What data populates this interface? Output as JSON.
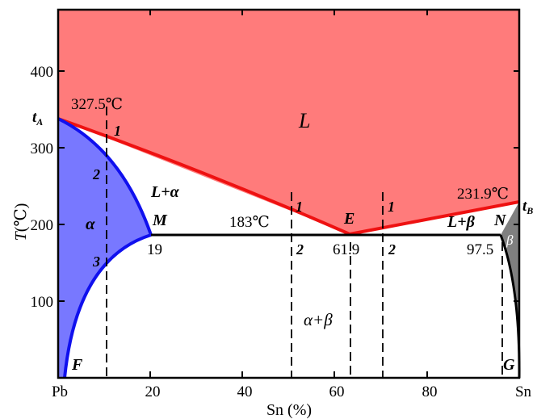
{
  "axes": {
    "y_label": "T",
    "y_unit": "(℃)",
    "x_label": "Sn (%)",
    "x_left_end": "Pb",
    "x_right_end": "Sn",
    "y_ticks": [
      "100",
      "200",
      "300",
      "400"
    ],
    "x_ticks": [
      "20",
      "40",
      "60",
      "80"
    ]
  },
  "points": {
    "tA": {
      "letter": "t",
      "sub": "A"
    },
    "tB": {
      "letter": "t",
      "sub": "B"
    },
    "M": "M",
    "E": "E",
    "N": "N",
    "F": "F",
    "G": "G"
  },
  "values": {
    "pb_melting": "327.5℃",
    "sn_melting": "231.9℃",
    "eutectic_temp": "183℃",
    "m_comp": "19",
    "e_comp": "61.9",
    "n_comp": "97.5"
  },
  "regions": {
    "liquid": "L",
    "l_alpha": "L+α",
    "alpha": "α",
    "l_beta": "L+β",
    "beta": "β",
    "alpha_beta": "α+β"
  },
  "line_numbers": {
    "a1": "1",
    "a2": "2",
    "a3": "3",
    "b1": "1",
    "b2": "2",
    "c1": "1",
    "c2": "2"
  },
  "colors": {
    "liquid_fill": "#ff7b7b",
    "liquidus_line": "#ee1111",
    "alpha_fill": "#7878ff",
    "solvus_alpha_line": "#1010ee",
    "beta_fill": "#808080",
    "axis": "#000000"
  }
}
